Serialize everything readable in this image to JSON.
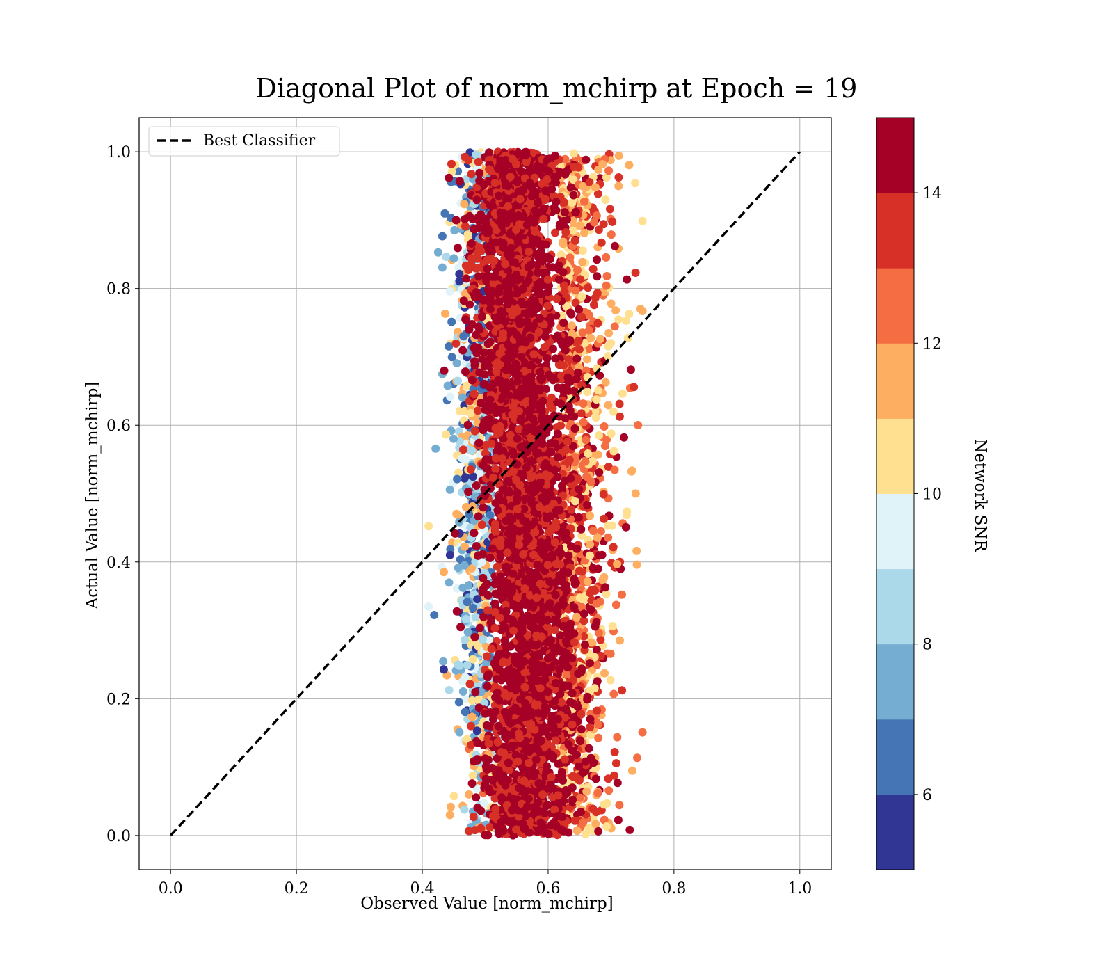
{
  "chart_data": {
    "type": "scatter",
    "title": "Diagonal Plot of norm_mchirp at Epoch = 19",
    "xlabel": "Observed Value [norm_mchirp]",
    "ylabel": "Actual Value [norm_mchirp]",
    "xlim": [
      -0.05,
      1.05
    ],
    "ylim": [
      -0.05,
      1.05
    ],
    "xticks": [
      "0.0",
      "0.2",
      "0.4",
      "0.6",
      "0.8",
      "1.0"
    ],
    "yticks": [
      "0.0",
      "0.2",
      "0.4",
      "0.6",
      "0.8",
      "1.0"
    ],
    "grid": true,
    "legend": {
      "placement": "top-left",
      "entries": [
        "Best Classifier"
      ]
    },
    "reference_line": {
      "name": "Best Classifier",
      "x": [
        0.0,
        1.0
      ],
      "y": [
        0.0,
        1.0
      ],
      "style": "dashed",
      "color": "#000000"
    },
    "points": {
      "description_fields": [
        "observed",
        "actual",
        "network_snr"
      ],
      "x_center": 0.56,
      "x_spread_core": 0.035,
      "x_range": [
        0.41,
        0.75
      ],
      "y_range": [
        0.0,
        1.0
      ],
      "snr_range": [
        5,
        15
      ],
      "high_snr_color": "#a50026"
    },
    "colorbar": {
      "label": "Network SNR",
      "range": [
        5,
        15
      ],
      "ticks": [
        "6",
        "8",
        "10",
        "12",
        "14"
      ],
      "tick_values": [
        6,
        8,
        10,
        12,
        14
      ],
      "colors": [
        "#313695",
        "#4575b4",
        "#74add1",
        "#abd9e9",
        "#e0f3f8",
        "#fee090",
        "#fdae61",
        "#f46d43",
        "#d73027",
        "#a50026"
      ]
    }
  }
}
